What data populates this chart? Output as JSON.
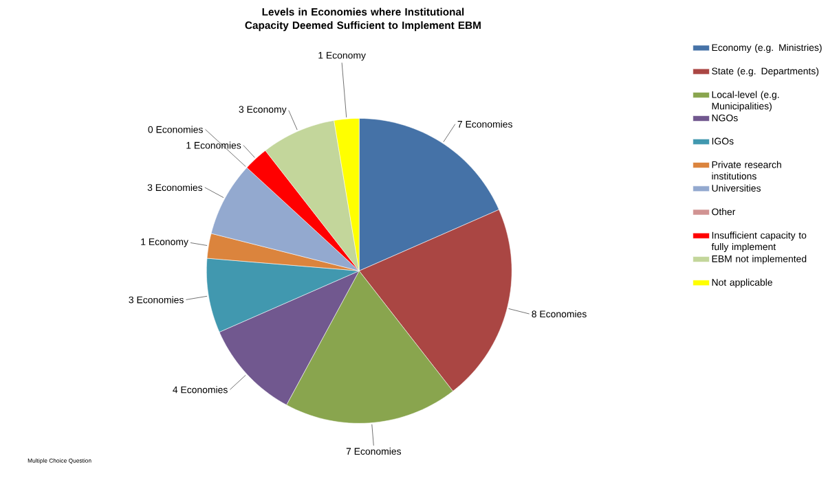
{
  "chart_data": {
    "type": "pie",
    "title": "Levels in Economies where Institutional Capacity Deemed Sufficient to Implement EBM",
    "categories": [
      "Economy (e.g. Ministries)",
      "State (e.g. Departments)",
      "Local-level (e.g. Municipalities)",
      "NGOs",
      "IGOs",
      "Private research institutions",
      "Universities",
      "Other",
      "Insufficient capacity to fully implement",
      "EBM not implemented",
      "Not applicable"
    ],
    "values": [
      7,
      8,
      7,
      4,
      3,
      1,
      3,
      0,
      1,
      3,
      1
    ],
    "colors": [
      "#4572a7",
      "#aa4643",
      "#89a54e",
      "#71588f",
      "#4198af",
      "#db843d",
      "#93a9cf",
      "#d19392",
      "#ff0000",
      "#c3d69b",
      "#ffff00"
    ],
    "value_labels": [
      "7 Economies",
      "8 Economies",
      "7 Economies",
      "4 Economies",
      "3 Economies",
      "1 Economy",
      "3 Economies",
      "0 Economies",
      "1 Economies",
      "3 Economy",
      "1 Economy"
    ],
    "legend": "right",
    "annotations": [
      "Multiple Choice Question"
    ]
  }
}
